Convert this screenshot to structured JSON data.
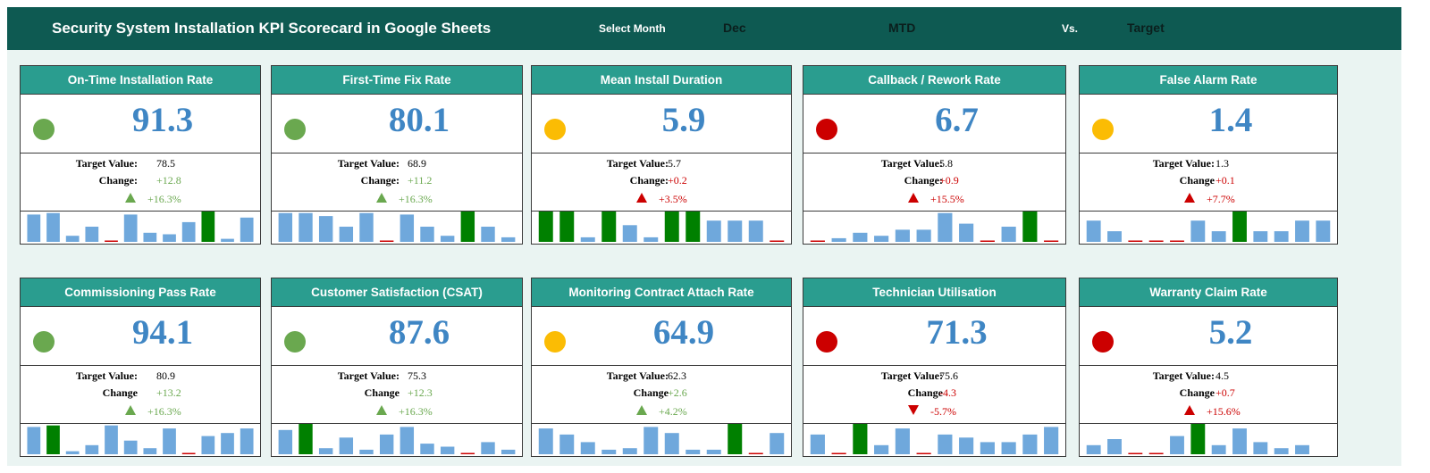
{
  "header": {
    "title": "Security System Installation KPI Scorecard in Google Sheets",
    "select_month_label": "Select Month",
    "month_value": "Dec",
    "period_value": "MTD",
    "vs_label": "Vs.",
    "compare_value": "Target"
  },
  "colors": {
    "header_bg": "#0e5a52",
    "card_header": "#2a9d8f",
    "value_blue": "#3f86c4",
    "status_green": "#6aa84f",
    "status_amber": "#fbbc04",
    "status_red": "#cc0000",
    "bar_blue": "#6fa8dc",
    "bar_green": "#008000",
    "bar_red_marker": "#cc0000"
  },
  "cards": [
    {
      "title": "On-Time Installation Rate",
      "value": "91.3",
      "status": "green",
      "target_label": "Target Value:",
      "target": "78.5",
      "change_label": "Change:",
      "change": "+12.8",
      "change_color": "green",
      "arrow": "up",
      "pct": "+16.3%",
      "bars": [
        {
          "v": 0.9,
          "t": "blue"
        },
        {
          "v": 0.95,
          "t": "blue"
        },
        {
          "v": 0.2,
          "t": "blue"
        },
        {
          "v": 0.5,
          "t": "blue"
        },
        {
          "v": 0,
          "t": "red"
        },
        {
          "v": 0.9,
          "t": "blue"
        },
        {
          "v": 0.3,
          "t": "blue"
        },
        {
          "v": 0.25,
          "t": "blue"
        },
        {
          "v": 0.65,
          "t": "blue"
        },
        {
          "v": 1.0,
          "t": "green"
        },
        {
          "v": 0.1,
          "t": "blue"
        },
        {
          "v": 0.8,
          "t": "blue"
        }
      ]
    },
    {
      "title": "First-Time Fix Rate",
      "value": "80.1",
      "status": "green",
      "target_label": "Target Value:",
      "target": "68.9",
      "change_label": "Change:",
      "change": "+11.2",
      "change_color": "green",
      "arrow": "up",
      "pct": "+16.3%",
      "bars": [
        {
          "v": 0.95,
          "t": "blue"
        },
        {
          "v": 0.95,
          "t": "blue"
        },
        {
          "v": 0.85,
          "t": "blue"
        },
        {
          "v": 0.5,
          "t": "blue"
        },
        {
          "v": 0.95,
          "t": "blue"
        },
        {
          "v": 0,
          "t": "red"
        },
        {
          "v": 0.9,
          "t": "blue"
        },
        {
          "v": 0.5,
          "t": "blue"
        },
        {
          "v": 0.2,
          "t": "blue"
        },
        {
          "v": 1.0,
          "t": "green"
        },
        {
          "v": 0.5,
          "t": "blue"
        },
        {
          "v": 0.15,
          "t": "blue"
        }
      ]
    },
    {
      "title": "Mean Install Duration",
      "value": "5.9",
      "status": "amber",
      "target_label": "Target Value:",
      "target": "5.7",
      "change_label": "Change:",
      "change": "+0.2",
      "change_color": "red",
      "arrow": "up",
      "pct": "+3.5%",
      "bars": [
        {
          "v": 1.0,
          "t": "green"
        },
        {
          "v": 1.0,
          "t": "green"
        },
        {
          "v": 0.15,
          "t": "blue"
        },
        {
          "v": 1.0,
          "t": "green"
        },
        {
          "v": 0.55,
          "t": "blue"
        },
        {
          "v": 0.15,
          "t": "blue"
        },
        {
          "v": 1.0,
          "t": "green"
        },
        {
          "v": 1.0,
          "t": "green"
        },
        {
          "v": 0.7,
          "t": "blue"
        },
        {
          "v": 0.7,
          "t": "blue"
        },
        {
          "v": 0.7,
          "t": "blue"
        },
        {
          "v": 0,
          "t": "red"
        }
      ]
    },
    {
      "title": "Callback / Rework Rate",
      "value": "6.7",
      "status": "red",
      "target_label": "Target Value:",
      "target": "5.8",
      "change_label": "Change:",
      "change": "+0.9",
      "change_color": "red",
      "arrow": "up",
      "pct": "+15.5%",
      "bars": [
        {
          "v": 0,
          "t": "red"
        },
        {
          "v": 0.12,
          "t": "blue"
        },
        {
          "v": 0.3,
          "t": "blue"
        },
        {
          "v": 0.2,
          "t": "blue"
        },
        {
          "v": 0.4,
          "t": "blue"
        },
        {
          "v": 0.4,
          "t": "blue"
        },
        {
          "v": 0.95,
          "t": "blue"
        },
        {
          "v": 0.6,
          "t": "blue"
        },
        {
          "v": 0,
          "t": "red"
        },
        {
          "v": 0.5,
          "t": "blue"
        },
        {
          "v": 1.0,
          "t": "green"
        },
        {
          "v": 0,
          "t": "red"
        }
      ]
    },
    {
      "title": "False Alarm Rate",
      "value": "1.4",
      "status": "amber",
      "target_label": "Target Value:",
      "target": "1.3",
      "change_label": "Change",
      "change": "+0.1",
      "change_color": "red",
      "arrow": "up",
      "pct": "+7.7%",
      "bars": [
        {
          "v": 0.7,
          "t": "blue"
        },
        {
          "v": 0.35,
          "t": "blue"
        },
        {
          "v": 0,
          "t": "red"
        },
        {
          "v": 0,
          "t": "red"
        },
        {
          "v": 0,
          "t": "red"
        },
        {
          "v": 0.7,
          "t": "blue"
        },
        {
          "v": 0.35,
          "t": "blue"
        },
        {
          "v": 1.0,
          "t": "green"
        },
        {
          "v": 0.35,
          "t": "blue"
        },
        {
          "v": 0.35,
          "t": "blue"
        },
        {
          "v": 0.7,
          "t": "blue"
        },
        {
          "v": 0.7,
          "t": "blue"
        }
      ]
    },
    {
      "title": "Commissioning Pass Rate",
      "value": "94.1",
      "status": "green",
      "target_label": "Target Value:",
      "target": "80.9",
      "change_label": "Change",
      "change": "+13.2",
      "change_color": "green",
      "arrow": "up",
      "pct": "+16.3%",
      "bars": [
        {
          "v": 0.9,
          "t": "blue"
        },
        {
          "v": 0.95,
          "t": "green"
        },
        {
          "v": 0.1,
          "t": "blue"
        },
        {
          "v": 0.3,
          "t": "blue"
        },
        {
          "v": 0.95,
          "t": "blue"
        },
        {
          "v": 0.45,
          "t": "blue"
        },
        {
          "v": 0.2,
          "t": "blue"
        },
        {
          "v": 0.85,
          "t": "blue"
        },
        {
          "v": 0,
          "t": "red"
        },
        {
          "v": 0.6,
          "t": "blue"
        },
        {
          "v": 0.7,
          "t": "blue"
        },
        {
          "v": 0.85,
          "t": "blue"
        }
      ]
    },
    {
      "title": "Customer Satisfaction (CSAT)",
      "value": "87.6",
      "status": "green",
      "target_label": "Target Value:",
      "target": "75.3",
      "change_label": "Change",
      "change": "+12.3",
      "change_color": "green",
      "arrow": "up",
      "pct": "+16.3%",
      "bars": [
        {
          "v": 0.8,
          "t": "blue"
        },
        {
          "v": 1.0,
          "t": "green"
        },
        {
          "v": 0.2,
          "t": "blue"
        },
        {
          "v": 0.55,
          "t": "blue"
        },
        {
          "v": 0.15,
          "t": "blue"
        },
        {
          "v": 0.65,
          "t": "blue"
        },
        {
          "v": 0.9,
          "t": "blue"
        },
        {
          "v": 0.35,
          "t": "blue"
        },
        {
          "v": 0.25,
          "t": "blue"
        },
        {
          "v": 0,
          "t": "red"
        },
        {
          "v": 0.4,
          "t": "blue"
        },
        {
          "v": 0.15,
          "t": "blue"
        }
      ]
    },
    {
      "title": "Monitoring Contract Attach Rate",
      "value": "64.9",
      "status": "amber",
      "target_label": "Target Value:",
      "target": "62.3",
      "change_label": "Change",
      "change": "+2.6",
      "change_color": "green",
      "arrow": "up",
      "pct": "+4.2%",
      "bars": [
        {
          "v": 0.85,
          "t": "blue"
        },
        {
          "v": 0.65,
          "t": "blue"
        },
        {
          "v": 0.4,
          "t": "blue"
        },
        {
          "v": 0.15,
          "t": "blue"
        },
        {
          "v": 0.2,
          "t": "blue"
        },
        {
          "v": 0.9,
          "t": "blue"
        },
        {
          "v": 0.7,
          "t": "blue"
        },
        {
          "v": 0.15,
          "t": "blue"
        },
        {
          "v": 0.15,
          "t": "blue"
        },
        {
          "v": 1.0,
          "t": "green"
        },
        {
          "v": 0,
          "t": "red"
        },
        {
          "v": 0.7,
          "t": "blue"
        }
      ]
    },
    {
      "title": "Technician Utilisation",
      "value": "71.3",
      "status": "red",
      "target_label": "Target Value:",
      "target": "75.6",
      "change_label": "Change",
      "change": "-4.3",
      "change_color": "red",
      "arrow": "down",
      "pct": "-5.7%",
      "bars": [
        {
          "v": 0.65,
          "t": "blue"
        },
        {
          "v": 0,
          "t": "red"
        },
        {
          "v": 1.0,
          "t": "green"
        },
        {
          "v": 0.3,
          "t": "blue"
        },
        {
          "v": 0.85,
          "t": "blue"
        },
        {
          "v": 0,
          "t": "red"
        },
        {
          "v": 0.65,
          "t": "blue"
        },
        {
          "v": 0.55,
          "t": "blue"
        },
        {
          "v": 0.4,
          "t": "blue"
        },
        {
          "v": 0.4,
          "t": "blue"
        },
        {
          "v": 0.65,
          "t": "blue"
        },
        {
          "v": 0.9,
          "t": "blue"
        }
      ]
    },
    {
      "title": "Warranty Claim Rate",
      "value": "5.2",
      "status": "red",
      "target_label": "Target Value:",
      "target": "4.5",
      "change_label": "Change",
      "change": "+0.7",
      "change_color": "red",
      "arrow": "up",
      "pct": "+15.6%",
      "bars": [
        {
          "v": 0.3,
          "t": "blue"
        },
        {
          "v": 0.5,
          "t": "blue"
        },
        {
          "v": 0,
          "t": "red"
        },
        {
          "v": 0,
          "t": "red"
        },
        {
          "v": 0.6,
          "t": "blue"
        },
        {
          "v": 1.0,
          "t": "green"
        },
        {
          "v": 0.3,
          "t": "blue"
        },
        {
          "v": 0.85,
          "t": "blue"
        },
        {
          "v": 0.4,
          "t": "blue"
        },
        {
          "v": 0.2,
          "t": "blue"
        },
        {
          "v": 0.3,
          "t": "blue"
        },
        {
          "v": 0
        }
      ]
    }
  ]
}
